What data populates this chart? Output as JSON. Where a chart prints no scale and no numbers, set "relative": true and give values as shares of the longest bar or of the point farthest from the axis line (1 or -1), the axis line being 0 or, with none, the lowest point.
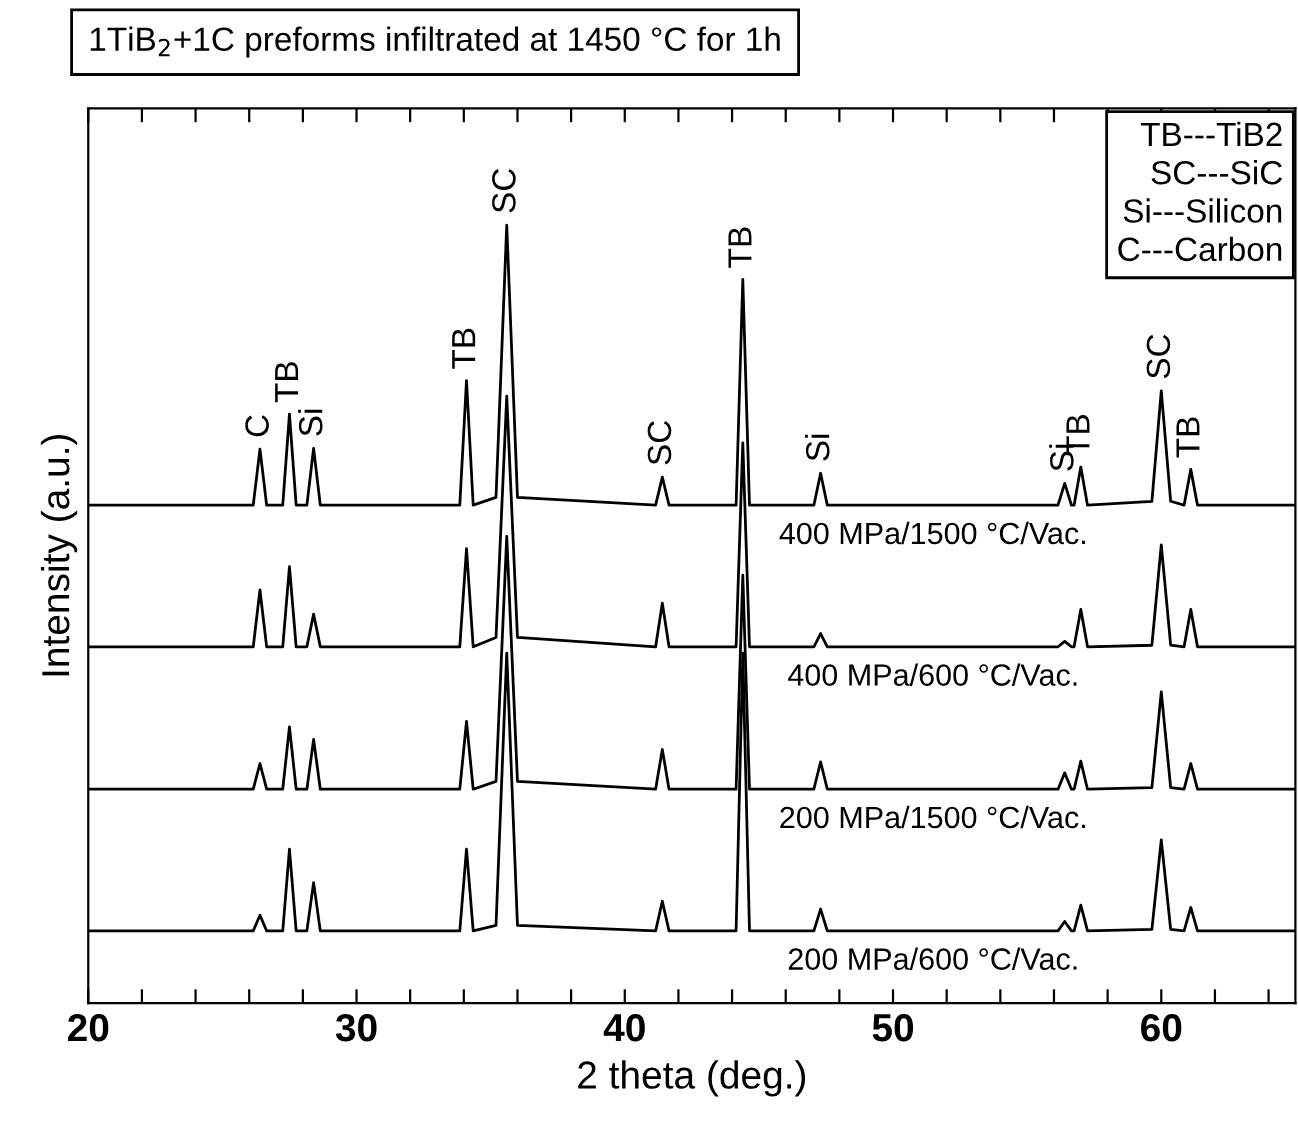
{
  "chart_data": {
    "type": "line",
    "title": "1TiB$_{2}$+1C preforms infiltrated at 1450 °C for 1h",
    "xlabel": "2 theta (deg.)",
    "ylabel": "Intensity (a.u.)",
    "relative": true,
    "grid": false,
    "legend": false,
    "xlim": [
      20,
      65
    ],
    "xticks": [
      20,
      {
        "value": 22,
        "label": null
      },
      {
        "value": 24,
        "label": null
      },
      {
        "value": 26,
        "label": null
      },
      {
        "value": 28,
        "label": null
      },
      30,
      {
        "value": 32,
        "label": null
      },
      {
        "value": 34,
        "label": null
      },
      {
        "value": 36,
        "label": null
      },
      {
        "value": 38,
        "label": null
      },
      40,
      {
        "value": 42,
        "label": null
      },
      {
        "value": 44,
        "label": null
      },
      {
        "value": 46,
        "label": null
      },
      {
        "value": 48,
        "label": null
      },
      50,
      {
        "value": 52,
        "label": null
      },
      {
        "value": 54,
        "label": null
      },
      {
        "value": 56,
        "label": null
      },
      {
        "value": 58,
        "label": null
      },
      60,
      {
        "value": 62,
        "label": null
      },
      {
        "value": 64,
        "label": null
      }
    ],
    "x": [
      20,
      26.15,
      26.4,
      26.65,
      27.25,
      27.5,
      27.75,
      28.15,
      28.4,
      28.65,
      33.85,
      34.1,
      34.35,
      35.2,
      35.6,
      36.0,
      41.15,
      41.4,
      41.65,
      44.15,
      44.4,
      44.65,
      47.05,
      47.3,
      47.55,
      56.15,
      56.4,
      56.65,
      56.75,
      57.0,
      57.25,
      59.65,
      60.0,
      60.35,
      60.85,
      61.1,
      61.35,
      65
    ],
    "series": [
      {
        "name": "400 MPa/1500 °C/Vac.",
        "color": "#000000",
        "values": [
          0.64,
          0.64,
          0.712,
          0.64,
          0.64,
          0.757,
          0.64,
          0.64,
          0.713,
          0.64,
          0.64,
          0.8,
          0.64,
          0.65,
          1.0,
          0.65,
          0.64,
          0.676,
          0.64,
          0.64,
          0.93,
          0.64,
          0.64,
          0.681,
          0.64,
          0.64,
          0.668,
          0.64,
          0.64,
          0.689,
          0.64,
          0.645,
          0.787,
          0.645,
          0.64,
          0.686,
          0.64,
          0.64
        ]
      },
      {
        "name": "400 MPa/600 °C/Vac.",
        "color": "#000000",
        "values": [
          0.458,
          0.458,
          0.531,
          0.458,
          0.458,
          0.561,
          0.458,
          0.458,
          0.5,
          0.458,
          0.458,
          0.584,
          0.458,
          0.47,
          0.78,
          0.47,
          0.458,
          0.514,
          0.458,
          0.458,
          0.72,
          0.458,
          0.458,
          0.475,
          0.458,
          0.458,
          0.465,
          0.458,
          0.458,
          0.506,
          0.458,
          0.46,
          0.589,
          0.46,
          0.458,
          0.506,
          0.458,
          0.458
        ]
      },
      {
        "name": "200 MPa/1500 °C/Vac.",
        "color": "#000000",
        "values": [
          0.275,
          0.275,
          0.308,
          0.275,
          0.275,
          0.355,
          0.275,
          0.275,
          0.339,
          0.275,
          0.275,
          0.362,
          0.275,
          0.285,
          0.6,
          0.285,
          0.275,
          0.326,
          0.275,
          0.275,
          0.55,
          0.275,
          0.275,
          0.31,
          0.275,
          0.275,
          0.296,
          0.275,
          0.275,
          0.311,
          0.275,
          0.277,
          0.4,
          0.277,
          0.275,
          0.308,
          0.275,
          0.275
        ]
      },
      {
        "name": "200 MPa/600 °C/Vac.",
        "color": "#000000",
        "values": [
          0.093,
          0.093,
          0.113,
          0.093,
          0.093,
          0.198,
          0.093,
          0.093,
          0.155,
          0.093,
          0.093,
          0.198,
          0.093,
          0.1,
          0.45,
          0.1,
          0.093,
          0.131,
          0.093,
          0.093,
          0.45,
          0.093,
          0.093,
          0.121,
          0.093,
          0.093,
          0.105,
          0.093,
          0.093,
          0.126,
          0.093,
          0.095,
          0.21,
          0.095,
          0.093,
          0.123,
          0.093,
          0.093
        ]
      }
    ],
    "annotations": [
      "TB---TiB2",
      "SC---SiC",
      "Si---Silicon",
      "C---Carbon",
      {
        "text": "C",
        "x": 26.4,
        "y": 0.712
      },
      {
        "text": "TB",
        "x": 27.5,
        "y": 0.757
      },
      {
        "text": "Si",
        "x": 28.4,
        "y": 0.713
      },
      {
        "text": "TB",
        "x": 34.1,
        "y": 0.8
      },
      {
        "text": "SC",
        "x": 35.6,
        "y": 1.0
      },
      {
        "text": "SC",
        "x": 41.4,
        "y": 0.676
      },
      {
        "text": "TB",
        "x": 44.4,
        "y": 0.93
      },
      {
        "text": "Si",
        "x": 47.3,
        "y": 0.681
      },
      {
        "text": "Si",
        "x": 56.4,
        "y": 0.668
      },
      {
        "text": "TB",
        "x": 57.0,
        "y": 0.689
      },
      {
        "text": "SC",
        "x": 60.0,
        "y": 0.787
      },
      {
        "text": "TB",
        "x": 61.1,
        "y": 0.686
      }
    ]
  }
}
